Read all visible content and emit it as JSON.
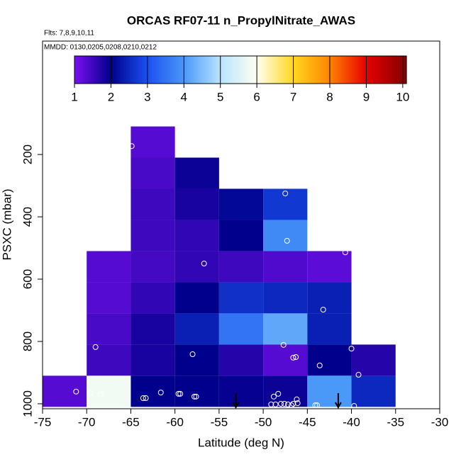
{
  "chart_data": {
    "type": "heatmap",
    "title": "ORCAS RF07-11 n_PropylNitrate_AWAS",
    "subtitle": "Flts: 7,8,9,10,11",
    "annotation": "MMDD: 0130,0205,0208,0210,0212",
    "x_label": "Latitude (deg N)",
    "y_label": "PSXC (mbar)",
    "xlim": [
      -75,
      -30
    ],
    "ylim": [
      1016,
      -164
    ],
    "xticks": [
      -75,
      -70,
      -65,
      -60,
      -55,
      -50,
      -45,
      -40,
      -35,
      -30
    ],
    "yticks": [
      200,
      400,
      600,
      800,
      1000
    ],
    "x_bins": [
      -75,
      -70,
      -65,
      -60,
      -55,
      -50,
      -45,
      -40,
      -35
    ],
    "y_bins": [
      110,
      210,
      310,
      410,
      510,
      610,
      710,
      810,
      910,
      1010
    ],
    "values": [
      [
        null,
        null,
        1.3,
        null,
        null,
        null,
        null,
        null
      ],
      [
        null,
        null,
        1.4,
        1.9,
        null,
        null,
        null,
        null
      ],
      [
        null,
        null,
        1.5,
        1.8,
        2.1,
        2.7,
        null,
        null
      ],
      [
        null,
        null,
        1.5,
        1.6,
        2.0,
        3.8,
        null,
        null
      ],
      [
        null,
        1.3,
        1.45,
        1.6,
        1.5,
        1.35,
        1.25,
        null
      ],
      [
        null,
        1.3,
        1.6,
        2.0,
        2.6,
        2.5,
        2.4,
        null
      ],
      [
        null,
        1.4,
        1.8,
        2.4,
        3.5,
        4.2,
        2.4,
        null
      ],
      [
        null,
        1.5,
        1.8,
        2.0,
        1.7,
        1.3,
        2.0,
        1.7
      ],
      [
        1.3,
        5.8,
        2.0,
        2.0,
        1.95,
        1.9,
        4.0,
        2.5
      ]
    ],
    "colorbar": {
      "lim": [
        1,
        10.1
      ],
      "ticks": [
        1,
        2,
        3,
        4,
        5,
        6,
        7,
        8,
        9,
        10
      ],
      "colors": [
        "#7a10f0",
        "#00008c",
        "#1a50f0",
        "#4a98f8",
        "#b8e4ff",
        "#fffff0",
        "#ffd820",
        "#ff8400",
        "#e80000",
        "#8a0000"
      ]
    },
    "points": {
      "x": [
        -64.9,
        -47.5,
        -47.3,
        -40.7,
        -56.7,
        -43.2,
        -47.7,
        -69.0,
        -40.0,
        -58.0,
        -46.6,
        -46.3,
        -43.6,
        -39.2,
        -71.2,
        -69.6,
        -68.4,
        -63.6,
        -63.3,
        -61.6,
        -59.6,
        -59.4,
        -57.8,
        -57.6,
        -48.8,
        -48.3,
        -46.2,
        -49.1,
        -48.6,
        -48.0,
        -47.6,
        -47.2,
        -46.8,
        -46.6,
        -46.1,
        -44.1,
        -43.9,
        -39.7
      ],
      "y": [
        173,
        325,
        477,
        514,
        550,
        698,
        811,
        818,
        823,
        841,
        852,
        850,
        877,
        907,
        961,
        966,
        970,
        982,
        982,
        964,
        968,
        968,
        977,
        977,
        977,
        968,
        986,
        1002,
        1002,
        1000,
        1000,
        1002,
        1005,
        1000,
        998,
        1005,
        1005,
        1007
      ],
      "color": "#ffffff"
    },
    "arrows": [
      -53.1,
      -41.5
    ]
  }
}
